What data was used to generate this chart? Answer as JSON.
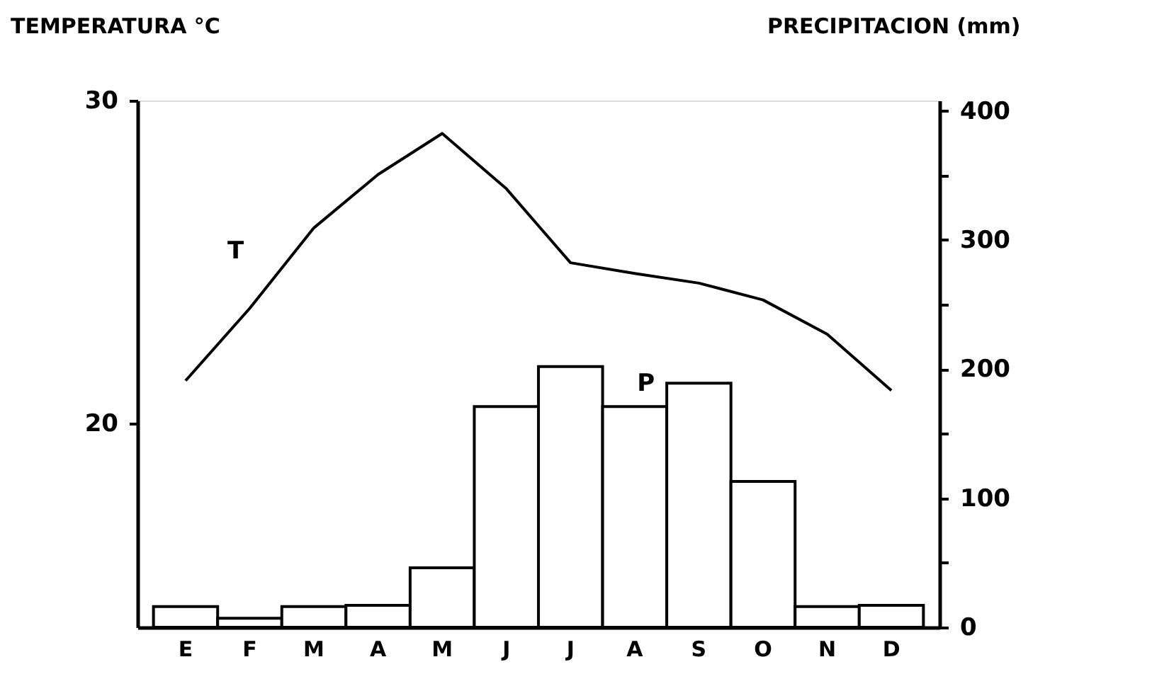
{
  "chart_data": {
    "type": "bar",
    "ylabel": "TEMPERATURA °C",
    "y2label": "PRECIPITACION (mm)",
    "categories": [
      "E",
      "F",
      "M",
      "A",
      "M",
      "J",
      "J",
      "A",
      "S",
      "O",
      "N",
      "D"
    ],
    "ylim": [
      13.7,
      30
    ],
    "yticks": [
      20,
      30
    ],
    "y2lim": [
      0,
      408
    ],
    "y2ticks": [
      0,
      {
        "value": 50,
        "label": null
      },
      100,
      {
        "value": 150,
        "label": null
      },
      200,
      {
        "value": 250,
        "label": null
      },
      300,
      {
        "value": 350,
        "label": null
      },
      400
    ],
    "series": [
      {
        "name": "P",
        "axis": "y2",
        "color": "#ffffff",
        "values": [
          16,
          7,
          16,
          17,
          46,
          171,
          202,
          171,
          189,
          113,
          16,
          17
        ]
      },
      {
        "name": "T",
        "type": "line",
        "axis": "y",
        "color": "#000000",
        "values": [
          21.33,
          23.57,
          26.06,
          27.71,
          28.98,
          27.27,
          24.98,
          24.65,
          24.35,
          23.83,
          22.77,
          21.03
        ]
      }
    ]
  }
}
